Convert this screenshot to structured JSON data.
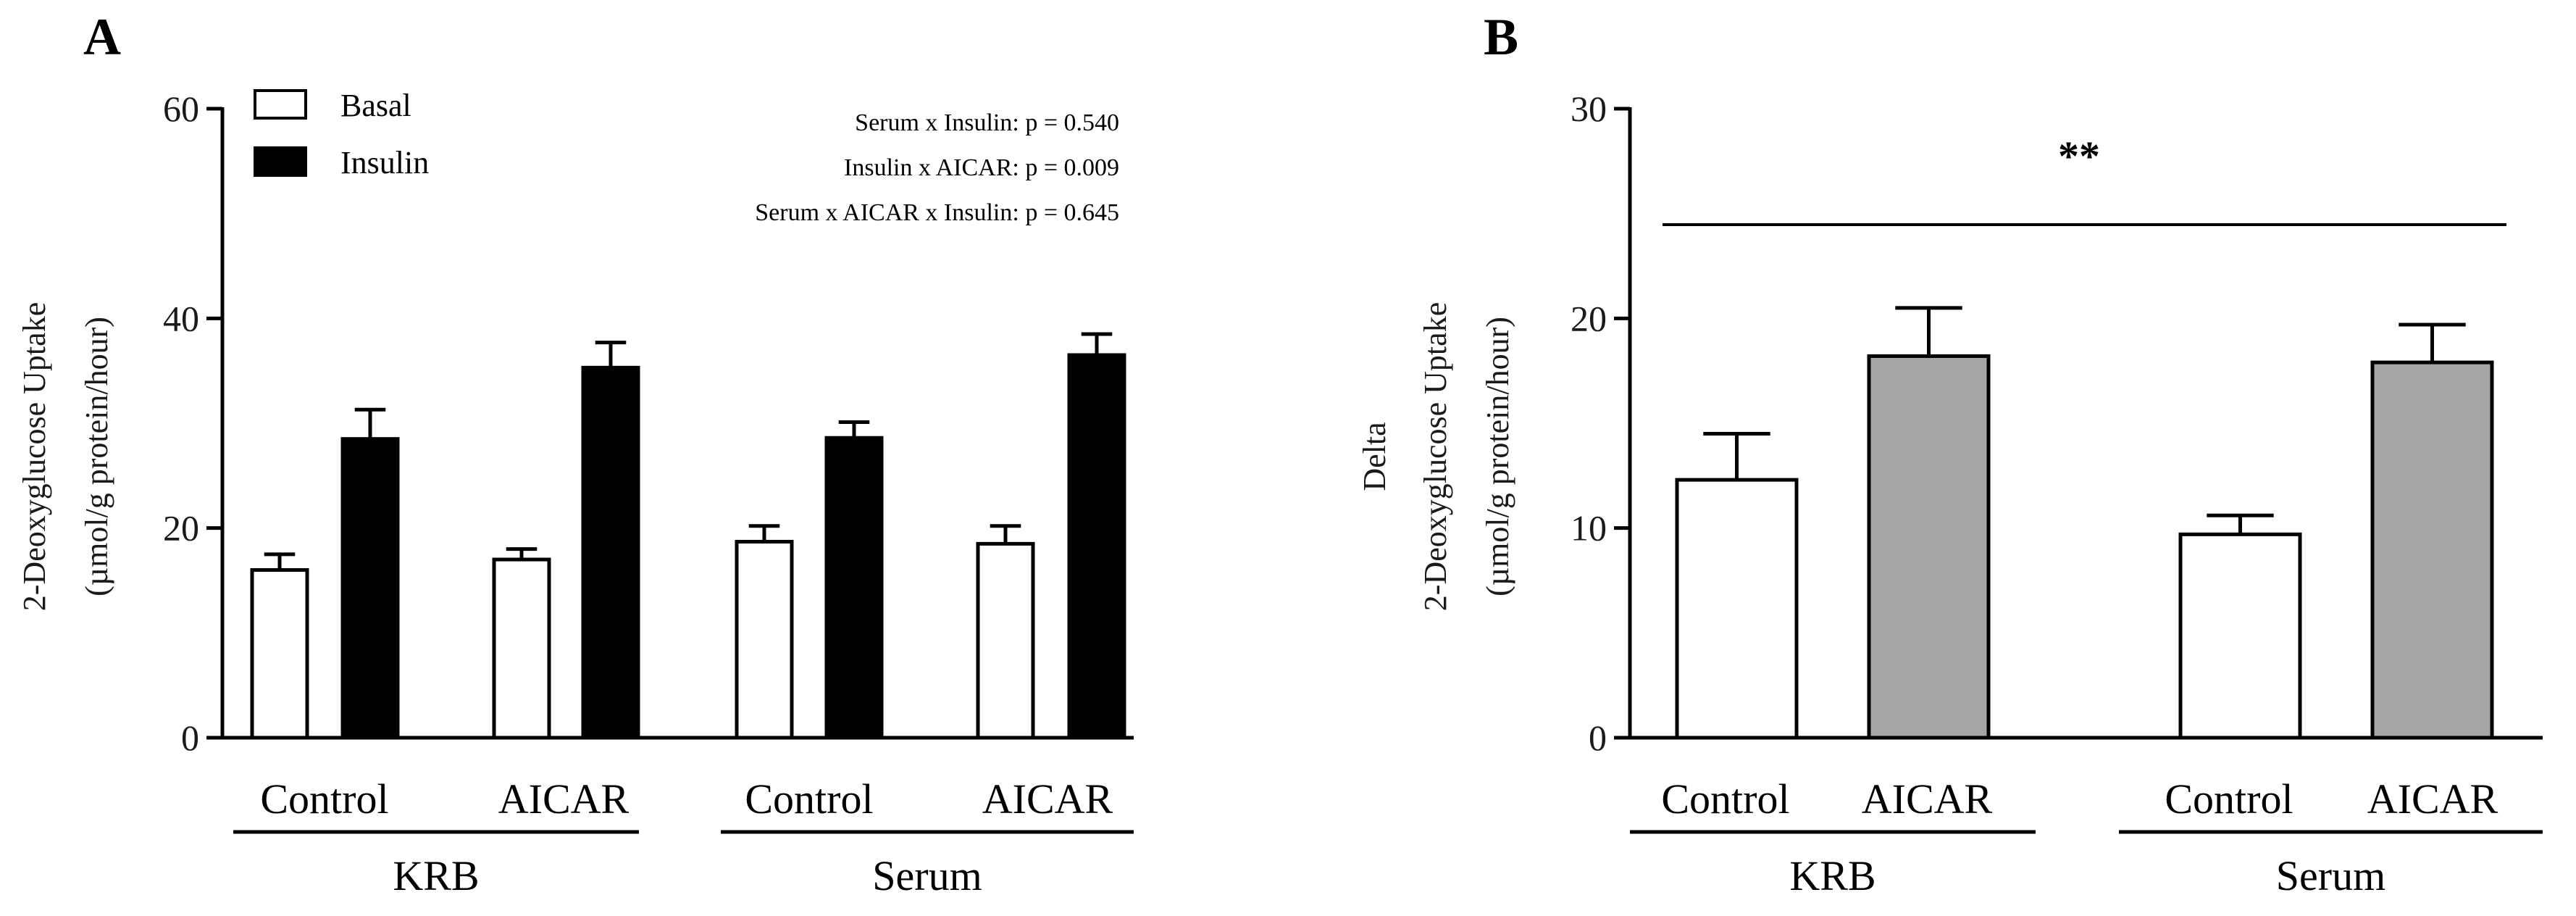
{
  "chart_data": [
    {
      "panel": "A",
      "type": "bar",
      "ylabel_line1": "2-Deoxyglucose Uptake",
      "ylabel_line2": "(µmol/g protein/hour)",
      "ylim": [
        0,
        60
      ],
      "yticks": [
        "0",
        "20",
        "40",
        "60"
      ],
      "ytick_values": [
        0,
        20,
        40,
        60
      ],
      "legend_position": "top-left",
      "series": [
        {
          "name": "Basal",
          "color": "#ffffff",
          "values": [
            16,
            17,
            18.7,
            18.5
          ],
          "errors": [
            1.5,
            1,
            1.5,
            1.7
          ]
        },
        {
          "name": "Insulin",
          "color": "#000000",
          "values": [
            28.5,
            35.3,
            28.6,
            36.5
          ],
          "errors": [
            2.8,
            2.4,
            1.5,
            2
          ]
        }
      ],
      "categories": [
        "Control",
        "AICAR",
        "Control",
        "AICAR"
      ],
      "groups": [
        {
          "label": "KRB",
          "categories": [
            0,
            1
          ]
        },
        {
          "label": "Serum",
          "categories": [
            2,
            3
          ]
        }
      ],
      "annotations": [
        "Serum x Insulin: p = 0.540",
        "Insulin x AICAR: p = 0.009",
        "Serum x AICAR x Insulin: p = 0.645"
      ]
    },
    {
      "panel": "B",
      "type": "bar",
      "ylabel_line0": "Delta",
      "ylabel_line1": "2-Deoxyglucose Uptake",
      "ylabel_line2": "(µmol/g protein/hour)",
      "ylim": [
        0,
        30
      ],
      "yticks": [
        "0",
        "10",
        "20",
        "30"
      ],
      "ytick_values": [
        0,
        10,
        20,
        30
      ],
      "bars": [
        {
          "category": "Control",
          "value": 12.3,
          "error": 2.2,
          "color": "#ffffff"
        },
        {
          "category": "AICAR",
          "value": 18.2,
          "error": 2.3,
          "color": "#a6a6a8"
        },
        {
          "category": "Control",
          "value": 9.7,
          "error": 0.9,
          "color": "#ffffff"
        },
        {
          "category": "AICAR",
          "value": 17.9,
          "error": 1.8,
          "color": "#a6a6a8"
        }
      ],
      "groups": [
        {
          "label": "KRB",
          "categories": [
            0,
            1
          ]
        },
        {
          "label": "Serum",
          "categories": [
            2,
            3
          ]
        }
      ],
      "significance": "**"
    }
  ]
}
